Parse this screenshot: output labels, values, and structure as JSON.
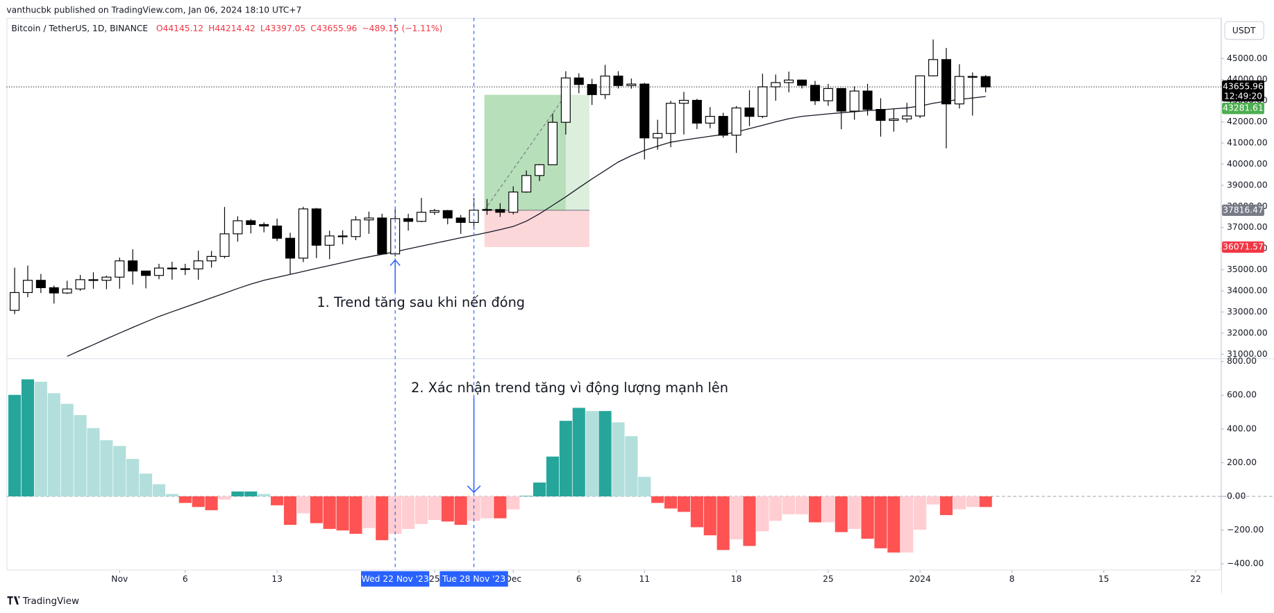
{
  "header": {
    "publisher": "vanthucbk published on TradingView.com, Jan 06, 2024 18:10 UTC+7",
    "symbol": "Bitcoin / TetherUS, 1D, BINANCE",
    "ohlc": [
      "O44145.12",
      "H44214.42",
      "L43397.05",
      "C43655.96",
      "−489.15 (−1.11%)"
    ],
    "currency": "USDT",
    "logo": "TradingView"
  },
  "chart_data": [
    {
      "type": "candlestick",
      "open": [
        33077,
        33920,
        34500,
        34150,
        33900,
        34090,
        34530,
        34500,
        34650,
        35420,
        34940,
        34730,
        35080,
        35050,
        35040,
        35420,
        35630,
        36700,
        37320,
        37140,
        37070,
        36490,
        35550,
        37880,
        36160,
        36600,
        36570,
        37360,
        37450,
        35750,
        37420,
        37290,
        37720,
        37800,
        37450,
        37240,
        37820,
        37850,
        37720,
        38680,
        39460,
        39970,
        41980,
        44080,
        43770,
        43290,
        44170,
        43720,
        43790,
        41240,
        41450,
        42880,
        43020,
        41940,
        42260,
        41370,
        42660,
        42260,
        43660,
        43860,
        43980,
        43730,
        43000,
        43580,
        42510,
        43460,
        42590,
        42070,
        42140,
        42280,
        44180,
        44950,
        42850,
        44150,
        44145.12
      ],
      "high": [
        35100,
        35200,
        34800,
        34250,
        34480,
        34750,
        34880,
        34720,
        35580,
        35970,
        34940,
        35280,
        35380,
        35280,
        35900,
        35890,
        37970,
        37530,
        37400,
        37240,
        37420,
        36750,
        37980,
        37930,
        36850,
        36870,
        37540,
        37750,
        37650,
        37880,
        37650,
        38400,
        37880,
        37830,
        37590,
        38400,
        38350,
        38150,
        38950,
        39700,
        40000,
        42400,
        44400,
        44300,
        44040,
        44700,
        44400,
        44050,
        43850,
        42100,
        43000,
        43420,
        43090,
        42700,
        42430,
        42750,
        43500,
        44280,
        44240,
        44380,
        44000,
        43940,
        43800,
        43600,
        43680,
        43800,
        43120,
        42620,
        42900,
        44180,
        45900,
        45500,
        44730,
        44340,
        44214.42
      ],
      "low": [
        32900,
        33700,
        33900,
        33400,
        33850,
        34000,
        34100,
        34080,
        34100,
        34300,
        34120,
        34550,
        34530,
        34750,
        34530,
        35100,
        35540,
        36330,
        36720,
        36770,
        36360,
        34800,
        35360,
        35550,
        35500,
        36200,
        36400,
        36700,
        35740,
        35630,
        36850,
        37250,
        37600,
        37150,
        36700,
        36900,
        37600,
        37500,
        37620,
        38650,
        39200,
        39970,
        41400,
        43350,
        42800,
        43080,
        43580,
        43570,
        40220,
        40680,
        40800,
        41400,
        41660,
        41700,
        41250,
        40530,
        41800,
        42180,
        43000,
        43400,
        43580,
        42800,
        42760,
        41650,
        42100,
        42300,
        41300,
        41540,
        41970,
        42180,
        44150,
        40750,
        42630,
        42300,
        43397.05
      ],
      "close": [
        33920,
        34500,
        34150,
        33900,
        34090,
        34530,
        34500,
        34650,
        35420,
        34940,
        34730,
        35080,
        35050,
        35040,
        35420,
        35630,
        36700,
        37320,
        37140,
        37070,
        36490,
        35550,
        37880,
        36160,
        36600,
        36570,
        37360,
        37450,
        35750,
        37420,
        37290,
        37720,
        37800,
        37450,
        37240,
        37820,
        37850,
        37720,
        38680,
        39460,
        39970,
        41980,
        44080,
        43770,
        43290,
        44170,
        43720,
        43790,
        41240,
        41450,
        42880,
        43020,
        41940,
        42260,
        41370,
        42660,
        42260,
        43660,
        43860,
        43980,
        43730,
        43000,
        43580,
        42510,
        43460,
        42590,
        42070,
        42140,
        42280,
        44180,
        44950,
        42850,
        44150,
        44145,
        43655.96
      ],
      "up_color": "#ffffff",
      "down_color": "#000000",
      "ma": {
        "color": "#131722",
        "values": [
          null,
          null,
          null,
          null,
          30900,
          31180,
          31450,
          31730,
          32000,
          32270,
          32530,
          32790,
          33010,
          33230,
          33450,
          33670,
          33890,
          34110,
          34320,
          34500,
          34640,
          34780,
          34920,
          35060,
          35200,
          35340,
          35480,
          35610,
          35730,
          35850,
          35990,
          36120,
          36250,
          36380,
          36510,
          36630,
          36760,
          36900,
          37050,
          37300,
          37650,
          38050,
          38450,
          38880,
          39300,
          39700,
          40100,
          40400,
          40650,
          40850,
          41040,
          41140,
          41230,
          41320,
          41400,
          41520,
          41680,
          41840,
          42000,
          42150,
          42260,
          42320,
          42380,
          42430,
          42480,
          42530,
          42570,
          42620,
          42660,
          42750,
          42880,
          42980,
          43060,
          43130,
          43200
        ]
      },
      "ylim": [
        30808,
        46923
      ],
      "yticks": [
        {
          "value": 31000,
          "label": "31000.00"
        },
        {
          "value": 32000,
          "label": "32000.00"
        },
        {
          "value": 33000,
          "label": "33000.00"
        },
        {
          "value": 34000,
          "label": "34000.00"
        },
        {
          "value": 35000,
          "label": "35000.00"
        },
        {
          "value": 36000,
          "label": "36000.00"
        },
        {
          "value": 37000,
          "label": "37000.00"
        },
        {
          "value": 38000,
          "label": "38000.00"
        },
        {
          "value": 39000,
          "label": "39000.00"
        },
        {
          "value": 40000,
          "label": "40000.00"
        },
        {
          "value": 41000,
          "label": "41000.00"
        },
        {
          "value": 42000,
          "label": "42000.00"
        },
        {
          "value": 43000,
          "label": "43000.00"
        },
        {
          "value": 44000,
          "label": "44000.00"
        },
        {
          "value": 45000,
          "label": "45000.00"
        }
      ],
      "xlim": [
        -0.62,
        91.95
      ],
      "xticks": [
        {
          "value": 8,
          "label": "Nov"
        },
        {
          "value": 13,
          "label": "6"
        },
        {
          "value": 20,
          "label": "13"
        },
        {
          "value": 32,
          "label": "25"
        },
        {
          "value": 38,
          "label": "Dec"
        },
        {
          "value": 43,
          "label": "6"
        },
        {
          "value": 48,
          "label": "11"
        },
        {
          "value": 55,
          "label": "18"
        },
        {
          "value": 62,
          "label": "25"
        },
        {
          "value": 69,
          "label": "2024"
        },
        {
          "value": 76,
          "label": "8"
        },
        {
          "value": 83,
          "label": "15"
        },
        {
          "value": 90,
          "label": "22"
        }
      ],
      "countdown": "12:49:20",
      "position": {
        "entry": 37816.47,
        "target": 43281.61,
        "stop": 36071.57,
        "start": 35.8,
        "end": 43.8
      },
      "markers": [
        {
          "x": 29,
          "label": "Wed 22 Nov '23"
        },
        {
          "x": 35,
          "label": "Tue 28 Nov '23"
        }
      ],
      "annotations": [
        "1. Trend tăng sau khi nến đóng",
        "2. Xác nhận trend tăng vì động lượng mạnh lên"
      ]
    },
    {
      "type": "histogram",
      "values": [
        602,
        694,
        680,
        612,
        549,
        482,
        405,
        333,
        299,
        222,
        135,
        72,
        14,
        -39,
        -63,
        -82,
        -19,
        29,
        29,
        14,
        -53,
        -169,
        -101,
        -159,
        -193,
        -202,
        -222,
        -188,
        -260,
        -222,
        -193,
        -164,
        -140,
        -149,
        -169,
        -145,
        -130,
        -130,
        -77,
        3,
        82,
        236,
        448,
        525,
        506,
        506,
        439,
        357,
        116,
        -39,
        -72,
        -92,
        -183,
        -231,
        -318,
        -255,
        -294,
        -207,
        -145,
        -106,
        -106,
        -154,
        -154,
        -212,
        -193,
        -251,
        -308,
        -333,
        -333,
        -198,
        -48,
        -111,
        -77,
        -63,
        -63
      ],
      "colors": [
        "#26a69a",
        "#26a69a",
        "#b2dfdb",
        "#b2dfdb",
        "#b2dfdb",
        "#b2dfdb",
        "#b2dfdb",
        "#b2dfdb",
        "#b2dfdb",
        "#b2dfdb",
        "#b2dfdb",
        "#b2dfdb",
        "#b2dfdb",
        "#ff5252",
        "#ff5252",
        "#ff5252",
        "#ffcdd2",
        "#26a69a",
        "#26a69a",
        "#b2dfdb",
        "#ff5252",
        "#ff5252",
        "#ffcdd2",
        "#ff5252",
        "#ff5252",
        "#ff5252",
        "#ff5252",
        "#ffcdd2",
        "#ff5252",
        "#ffcdd2",
        "#ffcdd2",
        "#ffcdd2",
        "#ffcdd2",
        "#ff5252",
        "#ff5252",
        "#ffcdd2",
        "#ffcdd2",
        "#ff5252",
        "#ffcdd2",
        "#26a69a",
        "#26a69a",
        "#26a69a",
        "#26a69a",
        "#26a69a",
        "#b2dfdb",
        "#26a69a",
        "#b2dfdb",
        "#b2dfdb",
        "#b2dfdb",
        "#ff5252",
        "#ff5252",
        "#ff5252",
        "#ff5252",
        "#ff5252",
        "#ff5252",
        "#ffcdd2",
        "#ff5252",
        "#ffcdd2",
        "#ffcdd2",
        "#ffcdd2",
        "#ffcdd2",
        "#ff5252",
        "#ffcdd2",
        "#ff5252",
        "#ffcdd2",
        "#ff5252",
        "#ff5252",
        "#ff5252",
        "#ffcdd2",
        "#ffcdd2",
        "#ffcdd2",
        "#ff5252",
        "#ffcdd2",
        "#ffcdd2",
        "#ff5252"
      ],
      "ylim": [
        -429,
        814
      ],
      "yticks": [
        {
          "value": -400,
          "label": "−400.00"
        },
        {
          "value": -200,
          "label": "−200.00"
        },
        {
          "value": 0,
          "label": "0.00"
        },
        {
          "value": 200,
          "label": "200.00"
        },
        {
          "value": 400,
          "label": "400.00"
        },
        {
          "value": 600,
          "label": "600.00"
        },
        {
          "value": 800,
          "label": "800.00"
        }
      ]
    }
  ]
}
